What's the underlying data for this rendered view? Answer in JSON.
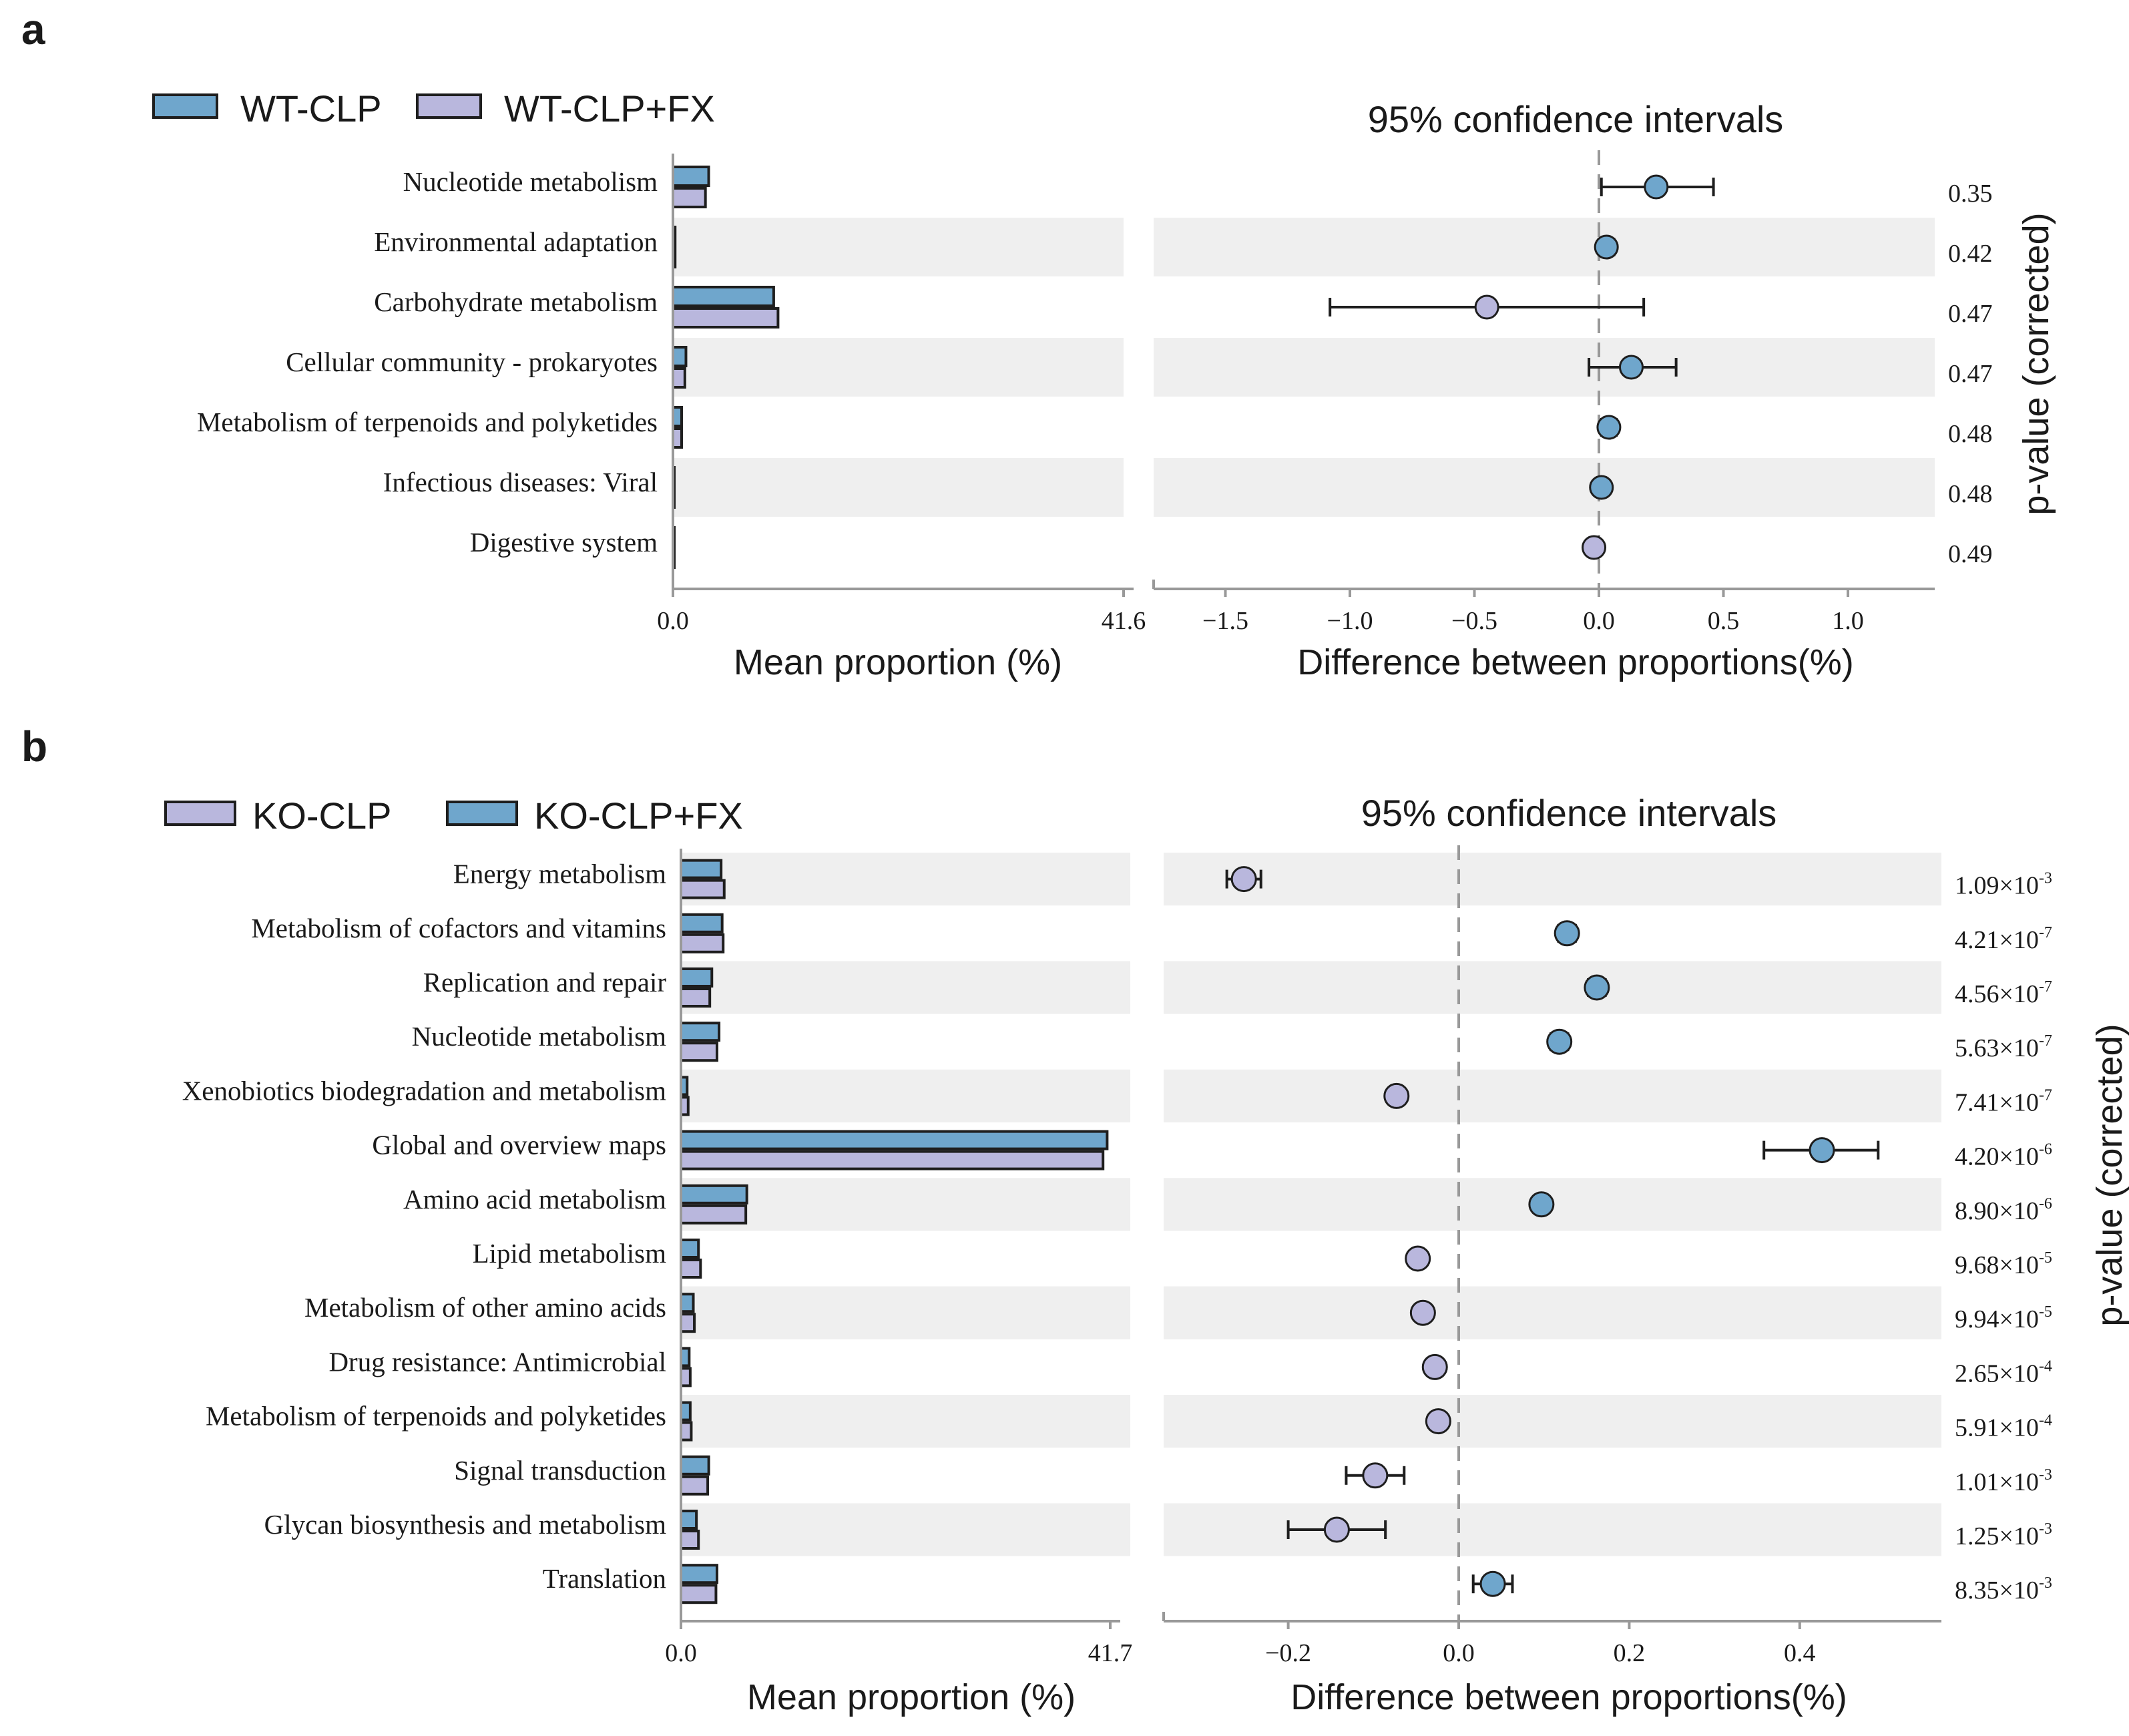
{
  "colors": {
    "blue": "#6fa6cc",
    "lavender": "#b9b7dd",
    "band": "#efefef",
    "axis": "#999999",
    "dash": "#999999",
    "edge": "#1e1e1e"
  },
  "chart_data": [
    {
      "panel": "a",
      "type": "extended_error_bar",
      "title": "95% confidence intervals",
      "legend": [
        {
          "name": "WT-CLP",
          "color": "#6fa6cc"
        },
        {
          "name": "WT-CLP+FX",
          "color": "#b9b7dd"
        }
      ],
      "bar_axis": {
        "xlabel": "Mean proportion (%)",
        "min_label": "0.0",
        "max_label": "41.6",
        "xlim": [
          0,
          41.6
        ]
      },
      "diff_axis": {
        "xlabel": "Difference between proportions(%)",
        "xlim": [
          -1.78,
          1.36
        ],
        "ticks": [
          -1.5,
          -1.0,
          -0.5,
          0.0,
          0.5,
          1.0
        ],
        "tick_labels": [
          "−1.5",
          "−1.0",
          "−0.5",
          "0.0",
          "0.5",
          "1.0"
        ]
      },
      "pvalue_title": "p-value (corrected)",
      "categories": [
        "Nucleotide metabolism",
        "Environmental adaptation",
        "Carbohydrate metabolism",
        "Cellular community - prokaryotes",
        "Metabolism of terpenoids and polyketides",
        "Infectious diseases: Viral",
        "Digestive system"
      ],
      "series": [
        {
          "name": "WT-CLP",
          "values": [
            3.3,
            0.2,
            9.3,
            1.2,
            0.8,
            0.1,
            0.1
          ]
        },
        {
          "name": "WT-CLP+FX",
          "values": [
            3.0,
            0.2,
            9.7,
            1.1,
            0.8,
            0.1,
            0.1
          ]
        }
      ],
      "differences": [
        {
          "value": 0.23,
          "ci_low": 0.01,
          "ci_high": 0.46,
          "favors": "WT-CLP"
        },
        {
          "value": 0.03,
          "ci_low": 0.0,
          "ci_high": 0.06,
          "favors": "WT-CLP"
        },
        {
          "value": -0.45,
          "ci_low": -1.08,
          "ci_high": 0.18,
          "favors": "WT-CLP+FX"
        },
        {
          "value": 0.13,
          "ci_low": -0.04,
          "ci_high": 0.31,
          "favors": "WT-CLP"
        },
        {
          "value": 0.04,
          "ci_low": 0.01,
          "ci_high": 0.07,
          "favors": "WT-CLP"
        },
        {
          "value": 0.01,
          "ci_low": -0.01,
          "ci_high": 0.03,
          "favors": "WT-CLP"
        },
        {
          "value": -0.02,
          "ci_low": -0.04,
          "ci_high": 0.0,
          "favors": "WT-CLP+FX"
        }
      ],
      "pvalues": [
        {
          "mantissa": "0.35",
          "exponent": ""
        },
        {
          "mantissa": "0.42",
          "exponent": ""
        },
        {
          "mantissa": "0.47",
          "exponent": ""
        },
        {
          "mantissa": "0.47",
          "exponent": ""
        },
        {
          "mantissa": "0.48",
          "exponent": ""
        },
        {
          "mantissa": "0.48",
          "exponent": ""
        },
        {
          "mantissa": "0.49",
          "exponent": ""
        }
      ],
      "band_rows": [
        1,
        3,
        5
      ]
    },
    {
      "panel": "b",
      "type": "extended_error_bar",
      "title": "95% confidence intervals",
      "legend": [
        {
          "name": "KO-CLP",
          "color": "#b9b7dd"
        },
        {
          "name": "KO-CLP+FX",
          "color": "#6fa6cc"
        }
      ],
      "bar_axis": {
        "xlabel": "Mean proportion (%)",
        "min_label": "0.0",
        "max_label": "41.7",
        "xlim": [
          0,
          41.7
        ]
      },
      "diff_axis": {
        "xlabel": "Difference between proportions(%)",
        "xlim": [
          -0.347,
          0.565
        ],
        "ticks": [
          -0.2,
          0.0,
          0.2,
          0.4
        ],
        "tick_labels": [
          "−0.2",
          "0.0",
          "0.2",
          "0.4"
        ]
      },
      "pvalue_title": "p-value (corrected)",
      "categories": [
        "Energy metabolism",
        "Metabolism of cofactors and vitamins",
        "Replication and repair",
        "Nucleotide metabolism",
        "Xenobiotics biodegradation and metabolism",
        "Global and overview maps",
        "Amino acid metabolism",
        "Lipid metabolism",
        "Metabolism of other amino acids",
        "Drug resistance: Antimicrobial",
        "Metabolism of terpenoids and polyketides",
        "Signal transduction",
        "Glycan biosynthesis and metabolism",
        "Translation"
      ],
      "series": [
        {
          "name": "KO-CLP+FX",
          "values": [
            3.9,
            4.0,
            3.0,
            3.7,
            0.6,
            41.4,
            6.4,
            1.7,
            1.2,
            0.8,
            0.9,
            2.7,
            1.5,
            3.5
          ]
        },
        {
          "name": "KO-CLP",
          "values": [
            4.2,
            4.1,
            2.8,
            3.5,
            0.7,
            41.0,
            6.3,
            1.9,
            1.3,
            0.9,
            1.0,
            2.6,
            1.7,
            3.4
          ]
        }
      ],
      "differences": [
        {
          "value": -0.252,
          "ci_low": -0.272,
          "ci_high": -0.232,
          "favors": "KO-CLP"
        },
        {
          "value": 0.127,
          "ci_low": 0.117,
          "ci_high": 0.137,
          "favors": "KO-CLP+FX"
        },
        {
          "value": 0.162,
          "ci_low": 0.152,
          "ci_high": 0.172,
          "favors": "KO-CLP+FX"
        },
        {
          "value": 0.118,
          "ci_low": 0.108,
          "ci_high": 0.128,
          "favors": "KO-CLP+FX"
        },
        {
          "value": -0.073,
          "ci_low": -0.079,
          "ci_high": -0.067,
          "favors": "KO-CLP"
        },
        {
          "value": 0.426,
          "ci_low": 0.358,
          "ci_high": 0.492,
          "favors": "KO-CLP+FX"
        },
        {
          "value": 0.097,
          "ci_low": 0.089,
          "ci_high": 0.105,
          "favors": "KO-CLP+FX"
        },
        {
          "value": -0.048,
          "ci_low": -0.053,
          "ci_high": -0.043,
          "favors": "KO-CLP"
        },
        {
          "value": -0.042,
          "ci_low": -0.047,
          "ci_high": -0.037,
          "favors": "KO-CLP"
        },
        {
          "value": -0.028,
          "ci_low": -0.032,
          "ci_high": -0.024,
          "favors": "KO-CLP"
        },
        {
          "value": -0.024,
          "ci_low": -0.028,
          "ci_high": -0.02,
          "favors": "KO-CLP"
        },
        {
          "value": -0.098,
          "ci_low": -0.132,
          "ci_high": -0.064,
          "favors": "KO-CLP"
        },
        {
          "value": -0.143,
          "ci_low": -0.2,
          "ci_high": -0.086,
          "favors": "KO-CLP"
        },
        {
          "value": 0.04,
          "ci_low": 0.017,
          "ci_high": 0.063,
          "favors": "KO-CLP+FX"
        }
      ],
      "pvalues": [
        {
          "mantissa": "1.09×10",
          "exponent": "-3"
        },
        {
          "mantissa": "4.21×10",
          "exponent": "-7"
        },
        {
          "mantissa": "4.56×10",
          "exponent": "-7"
        },
        {
          "mantissa": "5.63×10",
          "exponent": "-7"
        },
        {
          "mantissa": "7.41×10",
          "exponent": "-7"
        },
        {
          "mantissa": "4.20×10",
          "exponent": "-6"
        },
        {
          "mantissa": "8.90×10",
          "exponent": "-6"
        },
        {
          "mantissa": "9.68×10",
          "exponent": "-5"
        },
        {
          "mantissa": "9.94×10",
          "exponent": "-5"
        },
        {
          "mantissa": "2.65×10",
          "exponent": "-4"
        },
        {
          "mantissa": "5.91×10",
          "exponent": "-4"
        },
        {
          "mantissa": "1.01×10",
          "exponent": "-3"
        },
        {
          "mantissa": "1.25×10",
          "exponent": "-3"
        },
        {
          "mantissa": "8.35×10",
          "exponent": "-3"
        }
      ],
      "band_rows": [
        0,
        2,
        4,
        6,
        8,
        10,
        12
      ]
    }
  ]
}
